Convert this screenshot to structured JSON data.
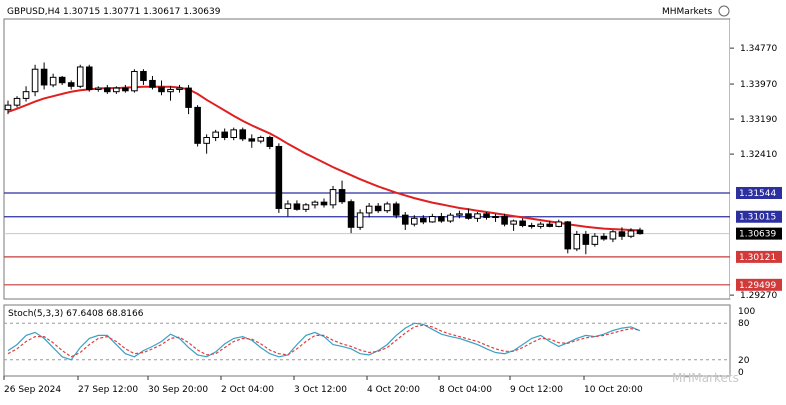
{
  "header": {
    "symbol_ohlc": "GBPUSD,H4  1.30715 1.30771 1.30617 1.30639",
    "brand": "MHMarkets"
  },
  "watermark": "MHMarkets",
  "colors": {
    "candle": "#000000",
    "ma": "#e02020",
    "blue_line": "#2b2fa0",
    "red_line": "#c83a3a",
    "grid": "#c8c8c8",
    "stoch_main": "#3aa0c8",
    "stoch_signal": "#e04040",
    "tag_blue": "#2b2fa0",
    "tag_red": "#d23a3a",
    "tag_current": "#000000"
  },
  "chart_data": [
    {
      "type": "candlestick",
      "symbol": "GBPUSD",
      "timeframe": "H4",
      "ohlc_header": {
        "open": 1.30715,
        "high": 1.30771,
        "low": 1.30617,
        "close": 1.30639
      },
      "x_tick_labels": [
        "26 Sep 2024",
        "27 Sep 12:00",
        "30 Sep 20:00",
        "2 Oct 04:00",
        "3 Oct 12:00",
        "4 Oct 20:00",
        "8 Oct 04:00",
        "9 Oct 12:00",
        "10 Oct 20:00"
      ],
      "y_tick_labels": [
        "1.34770",
        "1.33970",
        "1.33190",
        "1.32410",
        "1.29270"
      ],
      "ylim": [
        1.2925,
        1.3504
      ],
      "levels": [
        {
          "price": 1.31544,
          "label": "1.31544",
          "style": "blue"
        },
        {
          "price": 1.31015,
          "label": "1.31015",
          "style": "blue"
        },
        {
          "price": 1.30639,
          "label": "1.30639",
          "style": "current"
        },
        {
          "price": 1.30121,
          "label": "1.30121",
          "style": "red"
        },
        {
          "price": 1.29499,
          "label": "1.29499",
          "style": "red"
        }
      ],
      "ohlc": [
        [
          1.334,
          1.336,
          1.333,
          1.335
        ],
        [
          1.335,
          1.337,
          1.3345,
          1.3365
        ],
        [
          1.3365,
          1.3392,
          1.3358,
          1.338
        ],
        [
          1.338,
          1.344,
          1.337,
          1.343
        ],
        [
          1.343,
          1.3445,
          1.3385,
          1.3395
        ],
        [
          1.3395,
          1.342,
          1.339,
          1.3412
        ],
        [
          1.3412,
          1.3415,
          1.3395,
          1.34
        ],
        [
          1.34,
          1.3405,
          1.3385,
          1.3392
        ],
        [
          1.3392,
          1.344,
          1.3388,
          1.3435
        ],
        [
          1.3435,
          1.344,
          1.338,
          1.3385
        ],
        [
          1.3385,
          1.3392,
          1.338,
          1.3388
        ],
        [
          1.3388,
          1.3395,
          1.3375,
          1.338
        ],
        [
          1.338,
          1.3392,
          1.3375,
          1.3388
        ],
        [
          1.3388,
          1.3395,
          1.3378,
          1.3382
        ],
        [
          1.3382,
          1.343,
          1.3378,
          1.3425
        ],
        [
          1.3425,
          1.343,
          1.3395,
          1.3405
        ],
        [
          1.3405,
          1.3415,
          1.3385,
          1.339
        ],
        [
          1.339,
          1.3405,
          1.3372,
          1.338
        ],
        [
          1.338,
          1.3392,
          1.336,
          1.3385
        ],
        [
          1.3385,
          1.3395,
          1.3378,
          1.3388
        ],
        [
          1.3388,
          1.3395,
          1.333,
          1.3345
        ],
        [
          1.3345,
          1.335,
          1.3258,
          1.3265
        ],
        [
          1.3265,
          1.3285,
          1.3242,
          1.3278
        ],
        [
          1.3278,
          1.3295,
          1.327,
          1.329
        ],
        [
          1.329,
          1.3298,
          1.3272,
          1.3278
        ],
        [
          1.3278,
          1.33,
          1.3272,
          1.3295
        ],
        [
          1.3295,
          1.33,
          1.327,
          1.3275
        ],
        [
          1.3275,
          1.3285,
          1.3255,
          1.327
        ],
        [
          1.327,
          1.3282,
          1.3265,
          1.3278
        ],
        [
          1.3278,
          1.3282,
          1.3252,
          1.3258
        ],
        [
          1.3258,
          1.3265,
          1.311,
          1.312
        ],
        [
          1.312,
          1.3138,
          1.3102,
          1.313
        ],
        [
          1.313,
          1.3138,
          1.3115,
          1.3118
        ],
        [
          1.3118,
          1.3132,
          1.3112,
          1.3128
        ],
        [
          1.3128,
          1.3138,
          1.312,
          1.3134
        ],
        [
          1.3134,
          1.3142,
          1.3122,
          1.3128
        ],
        [
          1.3128,
          1.317,
          1.312,
          1.3162
        ],
        [
          1.3162,
          1.3182,
          1.313,
          1.3135
        ],
        [
          1.3135,
          1.314,
          1.3065,
          1.3078
        ],
        [
          1.3078,
          1.3118,
          1.3072,
          1.311
        ],
        [
          1.311,
          1.3132,
          1.31,
          1.3125
        ],
        [
          1.3125,
          1.3132,
          1.311,
          1.3115
        ],
        [
          1.3115,
          1.3135,
          1.311,
          1.313
        ],
        [
          1.313,
          1.3135,
          1.3098,
          1.3105
        ],
        [
          1.3105,
          1.3112,
          1.3072,
          1.3085
        ],
        [
          1.3085,
          1.3105,
          1.308,
          1.3098
        ],
        [
          1.3098,
          1.3105,
          1.3085,
          1.309
        ],
        [
          1.309,
          1.3108,
          1.3088,
          1.3102
        ],
        [
          1.3102,
          1.311,
          1.3088,
          1.3092
        ],
        [
          1.3092,
          1.311,
          1.3088,
          1.3105
        ],
        [
          1.3105,
          1.3115,
          1.3098,
          1.3108
        ],
        [
          1.3108,
          1.312,
          1.3095,
          1.3098
        ],
        [
          1.3098,
          1.3112,
          1.309,
          1.3108
        ],
        [
          1.3108,
          1.3112,
          1.3095,
          1.31
        ],
        [
          1.31,
          1.3108,
          1.309,
          1.3102
        ],
        [
          1.3102,
          1.3108,
          1.308,
          1.3085
        ],
        [
          1.3085,
          1.3095,
          1.307,
          1.3092
        ],
        [
          1.3092,
          1.3098,
          1.3078,
          1.3082
        ],
        [
          1.3082,
          1.3088,
          1.3075,
          1.308
        ],
        [
          1.308,
          1.309,
          1.3075,
          1.3085
        ],
        [
          1.3085,
          1.3092,
          1.3078,
          1.308
        ],
        [
          1.308,
          1.3095,
          1.3078,
          1.309
        ],
        [
          1.309,
          1.3092,
          1.302,
          1.303
        ],
        [
          1.303,
          1.307,
          1.3025,
          1.3062
        ],
        [
          1.3062,
          1.307,
          1.3018,
          1.304
        ],
        [
          1.304,
          1.3065,
          1.3035,
          1.3058
        ],
        [
          1.3058,
          1.3065,
          1.3048,
          1.3052
        ],
        [
          1.3052,
          1.3072,
          1.3045,
          1.3068
        ],
        [
          1.3068,
          1.3078,
          1.305,
          1.3058
        ],
        [
          1.3058,
          1.3076,
          1.3054,
          1.307
        ],
        [
          1.30715,
          1.30771,
          1.30617,
          1.30639
        ]
      ],
      "moving_average": [
        1.3335,
        1.3342,
        1.335,
        1.3358,
        1.3365,
        1.337,
        1.3375,
        1.338,
        1.3383,
        1.3385,
        1.3387,
        1.3388,
        1.3388,
        1.3389,
        1.339,
        1.3391,
        1.3391,
        1.3391,
        1.3391,
        1.3389,
        1.3385,
        1.3375,
        1.3362,
        1.335,
        1.3338,
        1.3326,
        1.3315,
        1.3305,
        1.3296,
        1.3287,
        1.3276,
        1.3264,
        1.3253,
        1.3242,
        1.3232,
        1.3222,
        1.3212,
        1.3203,
        1.3194,
        1.3185,
        1.3177,
        1.3169,
        1.3162,
        1.3155,
        1.3149,
        1.3143,
        1.3138,
        1.3133,
        1.3129,
        1.3125,
        1.3121,
        1.3118,
        1.3115,
        1.3112,
        1.3109,
        1.3106,
        1.3103,
        1.31,
        1.3097,
        1.3094,
        1.3091,
        1.3088,
        1.3085,
        1.3082,
        1.3079,
        1.3077,
        1.3075,
        1.3074,
        1.3073,
        1.3072,
        1.3071
      ]
    },
    {
      "type": "line",
      "indicator_label": "Stoch(5,3,3) 67.6408 68.8166",
      "y_tick_labels": [
        "100",
        "80",
        "20",
        "0"
      ],
      "ylim": [
        0,
        100
      ],
      "series": [
        {
          "role": "main",
          "values": [
            35,
            45,
            60,
            65,
            55,
            40,
            25,
            20,
            40,
            55,
            60,
            60,
            45,
            30,
            25,
            35,
            42,
            50,
            62,
            55,
            40,
            28,
            25,
            33,
            46,
            55,
            58,
            52,
            40,
            30,
            25,
            28,
            45,
            60,
            65,
            58,
            45,
            42,
            38,
            30,
            28,
            35,
            45,
            60,
            72,
            80,
            78,
            70,
            62,
            58,
            55,
            50,
            45,
            38,
            32,
            30,
            35,
            45,
            55,
            60,
            50,
            42,
            48,
            55,
            60,
            58,
            62,
            68,
            72,
            74,
            67.6408
          ]
        },
        {
          "role": "signal",
          "values": [
            30,
            38,
            50,
            58,
            58,
            48,
            35,
            25,
            32,
            45,
            55,
            58,
            50,
            38,
            30,
            32,
            38,
            45,
            55,
            57,
            48,
            36,
            28,
            30,
            40,
            50,
            55,
            54,
            46,
            36,
            30,
            28,
            38,
            50,
            60,
            60,
            52,
            46,
            42,
            36,
            32,
            34,
            40,
            52,
            64,
            74,
            77,
            74,
            67,
            62,
            58,
            54,
            50,
            44,
            38,
            34,
            34,
            40,
            48,
            55,
            54,
            48,
            47,
            52,
            56,
            58,
            60,
            64,
            68,
            71,
            68.8166
          ]
        }
      ]
    }
  ]
}
